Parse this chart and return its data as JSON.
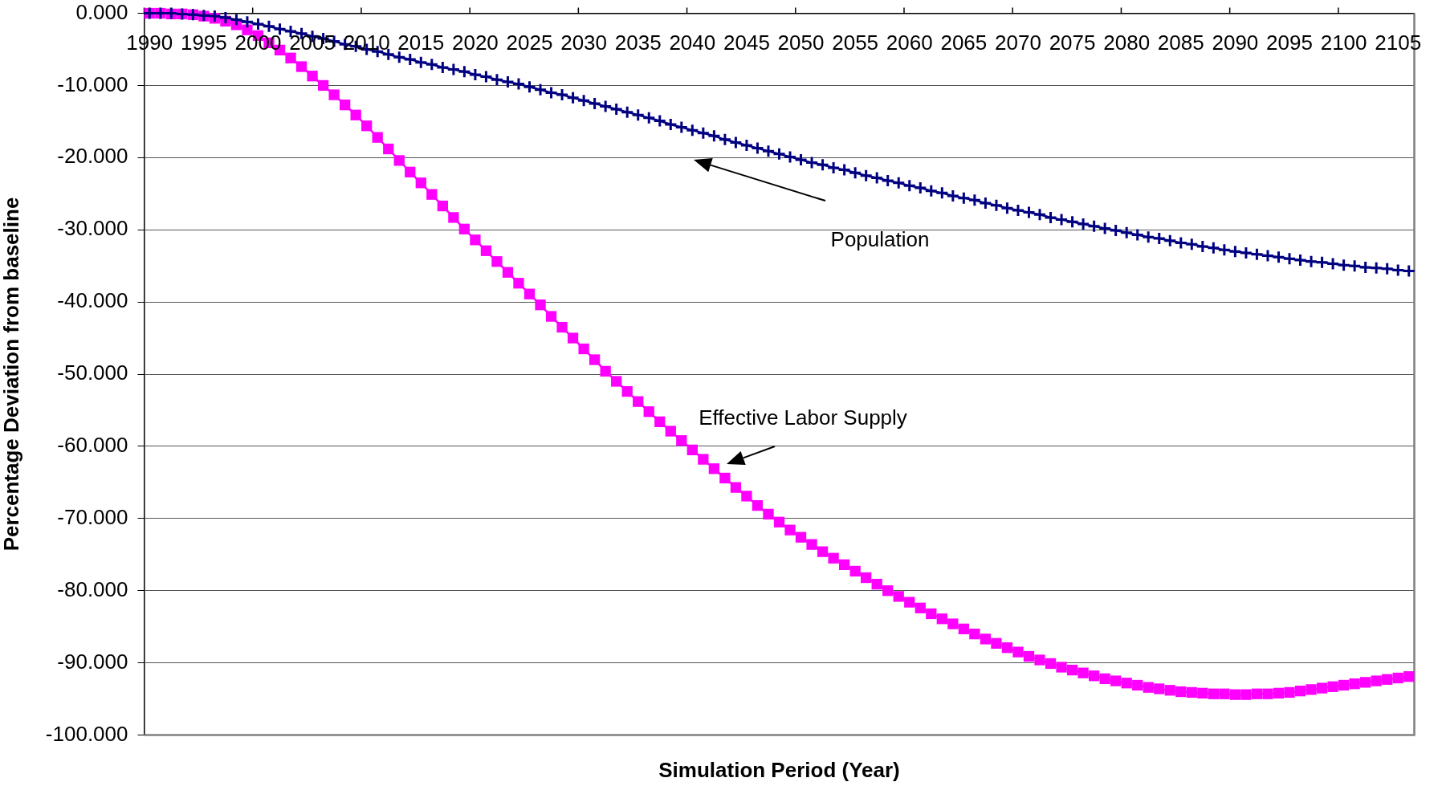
{
  "chart_data": {
    "type": "line",
    "xlabel": "Simulation Period (Year)",
    "ylabel": "Percentage Deviation from baseline",
    "categories": [
      "1990",
      null,
      null,
      null,
      null,
      "1995",
      null,
      null,
      null,
      null,
      "2000",
      null,
      null,
      null,
      null,
      "2005",
      null,
      null,
      null,
      null,
      "2010",
      null,
      null,
      null,
      null,
      "2015",
      null,
      null,
      null,
      null,
      "2020",
      null,
      null,
      null,
      null,
      "2025",
      null,
      null,
      null,
      null,
      "2030",
      null,
      null,
      null,
      null,
      "2035",
      null,
      null,
      null,
      null,
      "2040",
      null,
      null,
      null,
      null,
      "2045",
      null,
      null,
      null,
      null,
      "2050",
      null,
      null,
      null,
      null,
      "2055",
      null,
      null,
      null,
      null,
      "2060",
      null,
      null,
      null,
      null,
      "2065",
      null,
      null,
      null,
      null,
      "2070",
      null,
      null,
      null,
      null,
      "2075",
      null,
      null,
      null,
      null,
      "2080",
      null,
      null,
      null,
      null,
      "2085",
      null,
      null,
      null,
      null,
      "2090",
      null,
      null,
      null,
      null,
      "2095",
      null,
      null,
      null,
      null,
      "2100",
      null,
      null,
      null,
      null,
      "2105",
      null
    ],
    "series": [
      {
        "name": "Population",
        "color": "#000080",
        "marker": "cross",
        "values": [
          0,
          0,
          0,
          -0.1,
          -0.2,
          -0.3,
          -0.4,
          -0.6,
          -0.9,
          -1.2,
          -1.5,
          -1.8,
          -2.2,
          -2.5,
          -2.8,
          -3.2,
          -3.5,
          -3.9,
          -4.3,
          -4.6,
          -5.0,
          -5.3,
          -5.7,
          -6.1,
          -6.4,
          -6.8,
          -7.1,
          -7.5,
          -7.8,
          -8.1,
          -8.5,
          -8.8,
          -9.2,
          -9.5,
          -9.8,
          -10.2,
          -10.6,
          -11.0,
          -11.3,
          -11.7,
          -12.1,
          -12.5,
          -12.9,
          -13.3,
          -13.7,
          -14.1,
          -14.5,
          -14.9,
          -15.4,
          -15.8,
          -16.2,
          -16.6,
          -17.0,
          -17.5,
          -17.9,
          -18.3,
          -18.7,
          -19.1,
          -19.5,
          -19.9,
          -20.3,
          -20.7,
          -21.0,
          -21.4,
          -21.7,
          -22.1,
          -22.5,
          -22.8,
          -23.2,
          -23.5,
          -23.9,
          -24.2,
          -24.6,
          -24.9,
          -25.3,
          -25.6,
          -25.9,
          -26.3,
          -26.6,
          -27.0,
          -27.3,
          -27.6,
          -27.9,
          -28.3,
          -28.6,
          -28.9,
          -29.2,
          -29.5,
          -29.8,
          -30.1,
          -30.4,
          -30.7,
          -31.0,
          -31.2,
          -31.5,
          -31.8,
          -32.0,
          -32.3,
          -32.5,
          -32.8,
          -33.0,
          -33.2,
          -33.4,
          -33.6,
          -33.8,
          -34.0,
          -34.2,
          -34.4,
          -34.5,
          -34.7,
          -34.9,
          -35.0,
          -35.2,
          -35.3,
          -35.4,
          -35.6,
          -35.7
        ]
      },
      {
        "name": "Effective Labor Supply",
        "color": "#ff00ff",
        "marker": "square",
        "values": [
          0,
          0,
          -0.1,
          -0.1,
          -0.2,
          -0.4,
          -0.7,
          -1.1,
          -1.6,
          -2.3,
          -3.1,
          -4.1,
          -5.1,
          -6.2,
          -7.4,
          -8.7,
          -10.0,
          -11.3,
          -12.7,
          -14.1,
          -15.6,
          -17.2,
          -18.8,
          -20.4,
          -22.0,
          -23.5,
          -25.1,
          -26.7,
          -28.3,
          -29.9,
          -31.4,
          -32.9,
          -34.4,
          -35.9,
          -37.4,
          -38.9,
          -40.4,
          -42.0,
          -43.5,
          -45.0,
          -46.5,
          -48.0,
          -49.6,
          -51.0,
          -52.4,
          -53.8,
          -55.2,
          -56.6,
          -57.9,
          -59.2,
          -60.5,
          -61.8,
          -63.1,
          -64.4,
          -65.7,
          -66.9,
          -68.2,
          -69.4,
          -70.5,
          -71.6,
          -72.6,
          -73.6,
          -74.6,
          -75.5,
          -76.4,
          -77.3,
          -78.2,
          -79.1,
          -80.0,
          -80.8,
          -81.6,
          -82.4,
          -83.2,
          -83.9,
          -84.6,
          -85.3,
          -86.0,
          -86.7,
          -87.3,
          -87.9,
          -88.5,
          -89.1,
          -89.6,
          -90.1,
          -90.6,
          -91.0,
          -91.4,
          -91.8,
          -92.2,
          -92.5,
          -92.8,
          -93.1,
          -93.4,
          -93.6,
          -93.8,
          -94.0,
          -94.1,
          -94.2,
          -94.3,
          -94.3,
          -94.4,
          -94.4,
          -94.3,
          -94.3,
          -94.2,
          -94.1,
          -93.9,
          -93.7,
          -93.5,
          -93.3,
          -93.1,
          -92.9,
          -92.7,
          -92.5,
          -92.3,
          -92.1,
          -91.9
        ]
      }
    ],
    "ylim": [
      -100,
      0
    ],
    "yticks": [
      {
        "value": 0,
        "label": "0.000"
      },
      {
        "value": -10,
        "label": "-10.000"
      },
      {
        "value": -20,
        "label": "-20.000"
      },
      {
        "value": -30,
        "label": "-30.000"
      },
      {
        "value": -40,
        "label": "-40.000"
      },
      {
        "value": -50,
        "label": "-50.000"
      },
      {
        "value": -60,
        "label": "-60.000"
      },
      {
        "value": -70,
        "label": "-70.000"
      },
      {
        "value": -80,
        "label": "-80.000"
      },
      {
        "value": -90,
        "label": "-90.000"
      },
      {
        "value": -100,
        "label": "-100.000"
      }
    ],
    "grid": "y"
  }
}
